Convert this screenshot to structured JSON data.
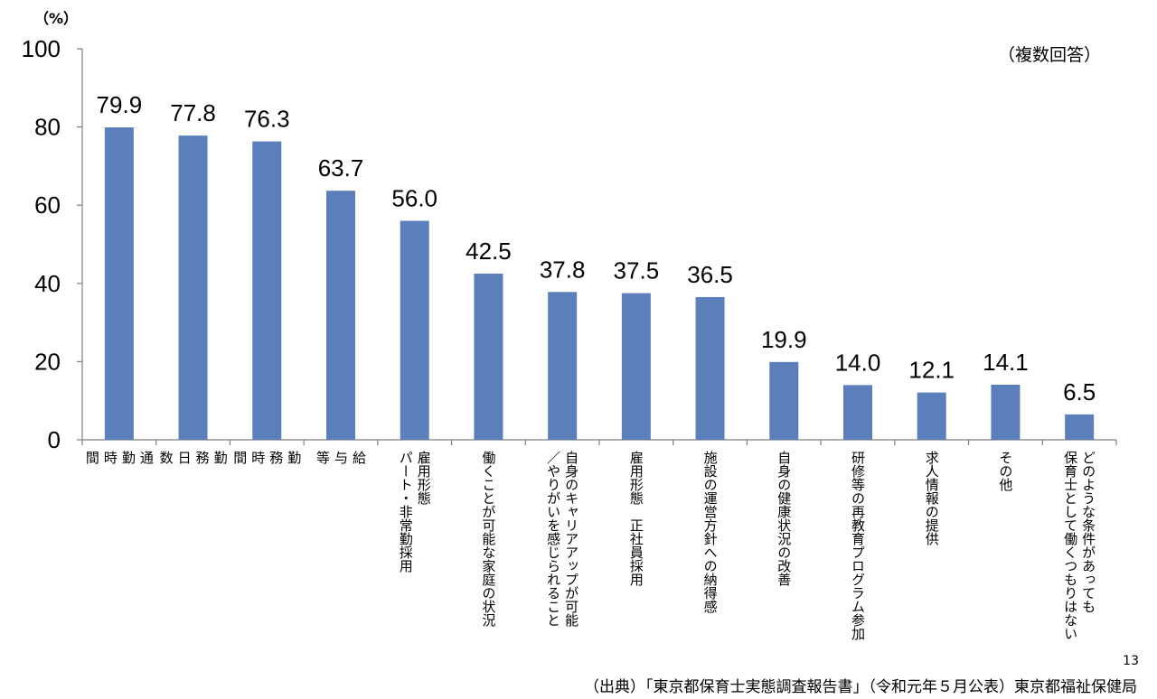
{
  "chart_data": {
    "type": "bar",
    "unit_label": "（%）",
    "note": "（複数回答）",
    "ylim": [
      0,
      100
    ],
    "yticks": [
      0,
      20,
      40,
      60,
      80,
      100
    ],
    "grid": false,
    "bar_color": "#5b7fba",
    "categories": [
      [
        "通",
        "勤",
        "時",
        "間"
      ],
      [
        "勤",
        "務",
        "日",
        "数"
      ],
      [
        "勤",
        "務",
        "時",
        "間"
      ],
      [
        "給",
        "与",
        "等"
      ],
      [
        "雇用形態",
        "パート・非常勤採用"
      ],
      [
        "働くことが可能な家庭の状況"
      ],
      [
        "自身のキャリアアップが可能",
        "／やりがいを感じられること"
      ],
      [
        "雇用形態　正社員採用"
      ],
      [
        "施設の運営方針への納得感"
      ],
      [
        "自身の健康状況の改善"
      ],
      [
        "研修等の再教育プログラム参加"
      ],
      [
        "求人情報の提供"
      ],
      [
        "その他"
      ],
      [
        "どのような条件があっても",
        "保育士として働くつもりはない"
      ]
    ],
    "values": [
      79.9,
      77.8,
      76.3,
      63.7,
      56.0,
      42.5,
      37.8,
      37.5,
      36.5,
      19.9,
      14.0,
      12.1,
      14.1,
      6.5
    ],
    "value_labels": [
      "79.9",
      "77.8",
      "76.3",
      "63.7",
      "56.0",
      "42.5",
      "37.8",
      "37.5",
      "36.5",
      "19.9",
      "14.0",
      "12.1",
      "14.1",
      "6.5"
    ]
  },
  "page_number": "13",
  "source": "（出典）「東京都保育士実態調査報告書」（令和元年５月公表）東京都福祉保健局"
}
